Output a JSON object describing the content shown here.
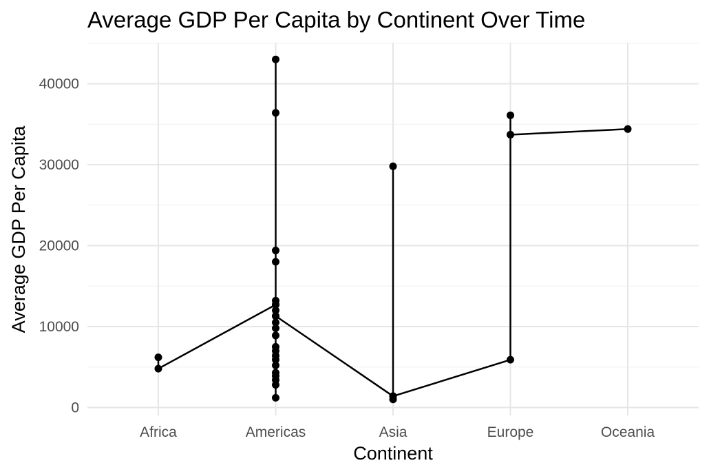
{
  "chart_data": {
    "type": "line",
    "title": "Average GDP Per Capita by Continent Over Time",
    "xlabel": "Continent",
    "ylabel": "Average GDP Per Capita",
    "categories": [
      "Africa",
      "Americas",
      "Asia",
      "Europe",
      "Oceania"
    ],
    "ylim": [
      0,
      45000
    ],
    "y_ticks": [
      0,
      10000,
      20000,
      30000,
      40000
    ],
    "y_tick_labels": [
      "0",
      "10000",
      "20000",
      "30000",
      "40000"
    ],
    "grid": true,
    "legend": "none",
    "line_color": "#000000",
    "points": [
      {
        "x": "Africa",
        "y": 6200
      },
      {
        "x": "Africa",
        "y": 4800
      },
      {
        "x": "Americas",
        "y": 12700
      },
      {
        "x": "Americas",
        "y": 1200
      },
      {
        "x": "Americas",
        "y": 2800
      },
      {
        "x": "Americas",
        "y": 3400
      },
      {
        "x": "Americas",
        "y": 3900
      },
      {
        "x": "Americas",
        "y": 4300
      },
      {
        "x": "Americas",
        "y": 5200
      },
      {
        "x": "Americas",
        "y": 5900
      },
      {
        "x": "Americas",
        "y": 6400
      },
      {
        "x": "Americas",
        "y": 7000
      },
      {
        "x": "Americas",
        "y": 7500
      },
      {
        "x": "Americas",
        "y": 8900
      },
      {
        "x": "Americas",
        "y": 9800
      },
      {
        "x": "Americas",
        "y": 10500
      },
      {
        "x": "Americas",
        "y": 11300
      },
      {
        "x": "Americas",
        "y": 12000
      },
      {
        "x": "Americas",
        "y": 12700
      },
      {
        "x": "Americas",
        "y": 13200
      },
      {
        "x": "Americas",
        "y": 18000
      },
      {
        "x": "Americas",
        "y": 19400
      },
      {
        "x": "Americas",
        "y": 36400
      },
      {
        "x": "Americas",
        "y": 43000
      },
      {
        "x": "Americas",
        "y": 11300
      },
      {
        "x": "Asia",
        "y": 1400
      },
      {
        "x": "Asia",
        "y": 1000
      },
      {
        "x": "Asia",
        "y": 29800
      },
      {
        "x": "Asia",
        "y": 1400
      },
      {
        "x": "Europe",
        "y": 5900
      },
      {
        "x": "Europe",
        "y": 33700
      },
      {
        "x": "Europe",
        "y": 36100
      },
      {
        "x": "Europe",
        "y": 33700
      },
      {
        "x": "Oceania",
        "y": 34400
      }
    ]
  }
}
